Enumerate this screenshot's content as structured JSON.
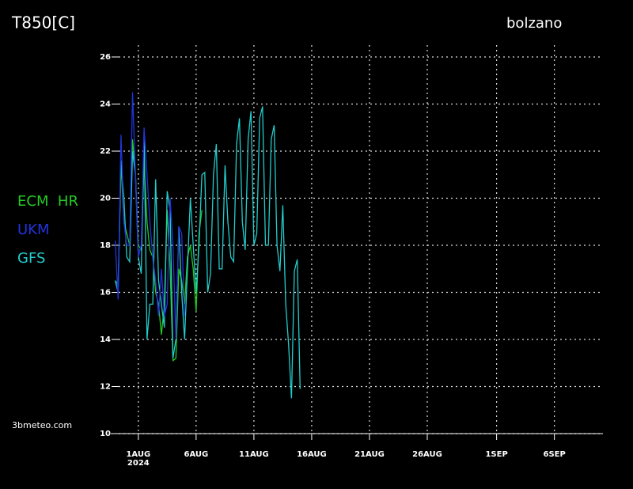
{
  "chart_data": {
    "type": "line",
    "title": "T850[C]",
    "location": "bolzano",
    "source": "3bmeteo.com",
    "x_year": "2024",
    "x": [
      -2,
      -1.75,
      -1.5,
      -1.25,
      -1,
      -0.75,
      -0.5,
      -0.25,
      0,
      0.25,
      0.5,
      0.75,
      1,
      1.25,
      1.5,
      1.75,
      2,
      2.25,
      2.5,
      2.75,
      3,
      3.25,
      3.5,
      3.75,
      4,
      4.25,
      4.5,
      4.75,
      5,
      5.25,
      5.5,
      5.75,
      6,
      6.25,
      6.5,
      6.75,
      7,
      7.25,
      7.5,
      7.75,
      8,
      8.25,
      8.5,
      8.75,
      9,
      9.25,
      9.5,
      9.75,
      10,
      10.25,
      10.5,
      10.75,
      11,
      11.25,
      11.5,
      11.75,
      12,
      12.25,
      12.5,
      12.75,
      13,
      13.25,
      13.5,
      13.75,
      14,
      14.25,
      14.5
    ],
    "series": [
      {
        "name": "ECM  HR",
        "color": "#22cc22",
        "values": [
          16.5,
          16.3,
          21.5,
          19,
          18.5,
          18,
          22.5,
          21,
          18,
          17.8,
          21.5,
          19,
          17.8,
          17.5,
          16,
          15.5,
          14.2,
          15.5,
          19.5,
          17,
          13.1,
          13.2,
          17,
          16.5,
          15.5,
          17.5,
          18,
          17,
          15.2,
          18.5,
          19.5,
          null,
          null,
          null,
          null,
          null,
          null,
          null,
          null,
          null,
          null,
          null,
          null,
          null,
          null,
          null,
          null,
          null,
          null,
          null,
          null,
          null,
          null,
          null,
          null,
          null,
          null,
          null,
          null,
          null,
          null,
          null,
          null,
          null,
          null,
          null,
          null
        ]
      },
      {
        "name": "GFS",
        "color": "#22cccc",
        "values": [
          16.5,
          16,
          21.6,
          20,
          17.5,
          17.3,
          22,
          21,
          17.5,
          16.8,
          22.8,
          14,
          15.5,
          15.5,
          20.8,
          16.5,
          15.5,
          14.5,
          20.3,
          19.5,
          13.2,
          14,
          18.8,
          16,
          14,
          17,
          20,
          18,
          16,
          18,
          21,
          21.1,
          16,
          16.8,
          21,
          22.3,
          17,
          17,
          21.4,
          19,
          17.5,
          17.3,
          22.3,
          23.4,
          19,
          17.8,
          22.5,
          23.7,
          18,
          18.5,
          23.4,
          23.9,
          18,
          18,
          22.5,
          23.1,
          18,
          16.9,
          19.7,
          15.5,
          13.8,
          11.5,
          16.9,
          17.4,
          11.9,
          null,
          null
        ]
      },
      {
        "name": "UKM",
        "color": "#2233dd",
        "values": [
          18.2,
          15.7,
          22.7,
          19,
          18,
          18,
          24.5,
          21,
          17.5,
          18,
          23,
          21,
          19,
          17.5,
          16.5,
          15,
          17,
          15,
          15.5,
          20,
          18,
          14,
          18.8,
          18.5,
          15,
          null,
          null,
          null,
          null,
          null,
          null,
          null,
          null,
          null,
          null,
          null,
          null,
          null,
          null,
          null,
          null,
          null,
          null,
          null,
          null,
          null,
          null,
          null,
          null,
          null,
          null,
          null,
          null,
          null,
          null,
          null,
          null,
          null,
          null,
          null,
          null,
          null,
          null,
          null,
          null,
          null,
          null
        ]
      }
    ],
    "legend_order": [
      0,
      2,
      1
    ],
    "xlim": [
      -1.7,
      40.2
    ],
    "xticks": [
      {
        "value": 0,
        "label": "1AUG"
      },
      {
        "value": 5,
        "label": "6AUG"
      },
      {
        "value": 10,
        "label": "11AUG"
      },
      {
        "value": 15,
        "label": "16AUG"
      },
      {
        "value": 20,
        "label": "21AUG"
      },
      {
        "value": 25,
        "label": "26AUG"
      },
      {
        "value": 31,
        "label": "1SEP"
      },
      {
        "value": 36,
        "label": "6SEP"
      }
    ],
    "ylim": [
      10,
      26
    ],
    "yticks": [
      10,
      12,
      14,
      16,
      18,
      20,
      22,
      24,
      26
    ],
    "grid": true
  }
}
